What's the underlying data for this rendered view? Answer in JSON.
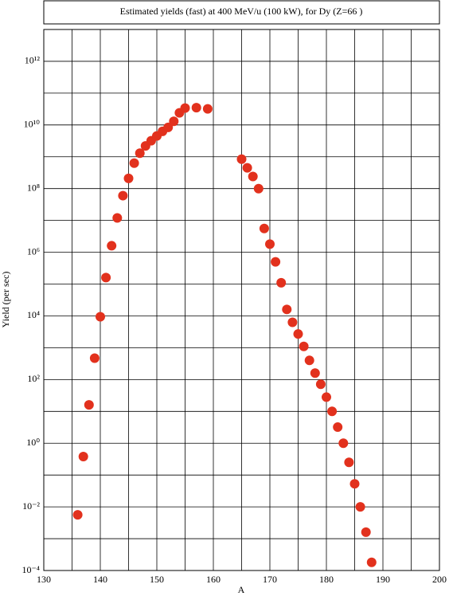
{
  "chart_data": {
    "type": "scatter",
    "title": "Estimated yields (fast) at 400 MeV/u (100 kW), for Dy (Z=66 )",
    "x_label": "A",
    "y_label": "Yield (per sec)",
    "log_y": true,
    "grid": true,
    "color": "#e2311d",
    "xlim": [
      130,
      200
    ],
    "xticks": [
      130,
      140,
      150,
      160,
      170,
      180,
      190,
      200
    ],
    "minor_xticks": [
      135,
      145,
      155,
      165,
      175,
      185,
      195
    ],
    "ylim": [
      0.0001,
      10000000000000.0
    ],
    "yticks": [
      {
        "value": 0.0001,
        "label": "10⁻⁴"
      },
      {
        "value": 0.01,
        "label": "10⁻²"
      },
      {
        "value": 1,
        "label": "10⁰"
      },
      {
        "value": 100,
        "label": "10²"
      },
      {
        "value": 10000,
        "label": "10⁴"
      },
      {
        "value": 1000000,
        "label": "10⁶"
      },
      {
        "value": 100000000,
        "label": "10⁸"
      },
      {
        "value": 10000000000,
        "label": "10¹⁰"
      },
      {
        "value": 1000000000000,
        "label": "10¹²"
      }
    ],
    "minor_yticks": [
      0.001,
      0.1,
      10,
      1000,
      100000,
      10000000,
      1000000000,
      100000000000,
      10000000000000
    ],
    "x": [
      136,
      137,
      138,
      139,
      140,
      141,
      142,
      143,
      144,
      145,
      146,
      147,
      148,
      149,
      150,
      151,
      152,
      153,
      154,
      155,
      157,
      159,
      165,
      166,
      167,
      168,
      169,
      170,
      171,
      172,
      173,
      174,
      175,
      176,
      177,
      178,
      179,
      180,
      181,
      182,
      183,
      184,
      185,
      186,
      187,
      188
    ],
    "values": [
      0.0056,
      0.38,
      16,
      470,
      9400,
      160000,
      1600000,
      12000000,
      60000000,
      210000000,
      630000000,
      1300000000,
      2200000000,
      3200000000,
      4500000000,
      6300000000,
      8400000000,
      13000000000,
      24000000000,
      34000000000,
      35000000000,
      32000000000,
      840000000,
      450000000,
      240000000,
      100000000,
      5600000,
      1800000,
      500000,
      110000,
      16000,
      6300,
      2700,
      1100,
      400,
      160,
      71,
      28,
      10,
      3.2,
      1,
      0.25,
      0.053,
      0.01,
      0.0016,
      0.00018
    ]
  }
}
